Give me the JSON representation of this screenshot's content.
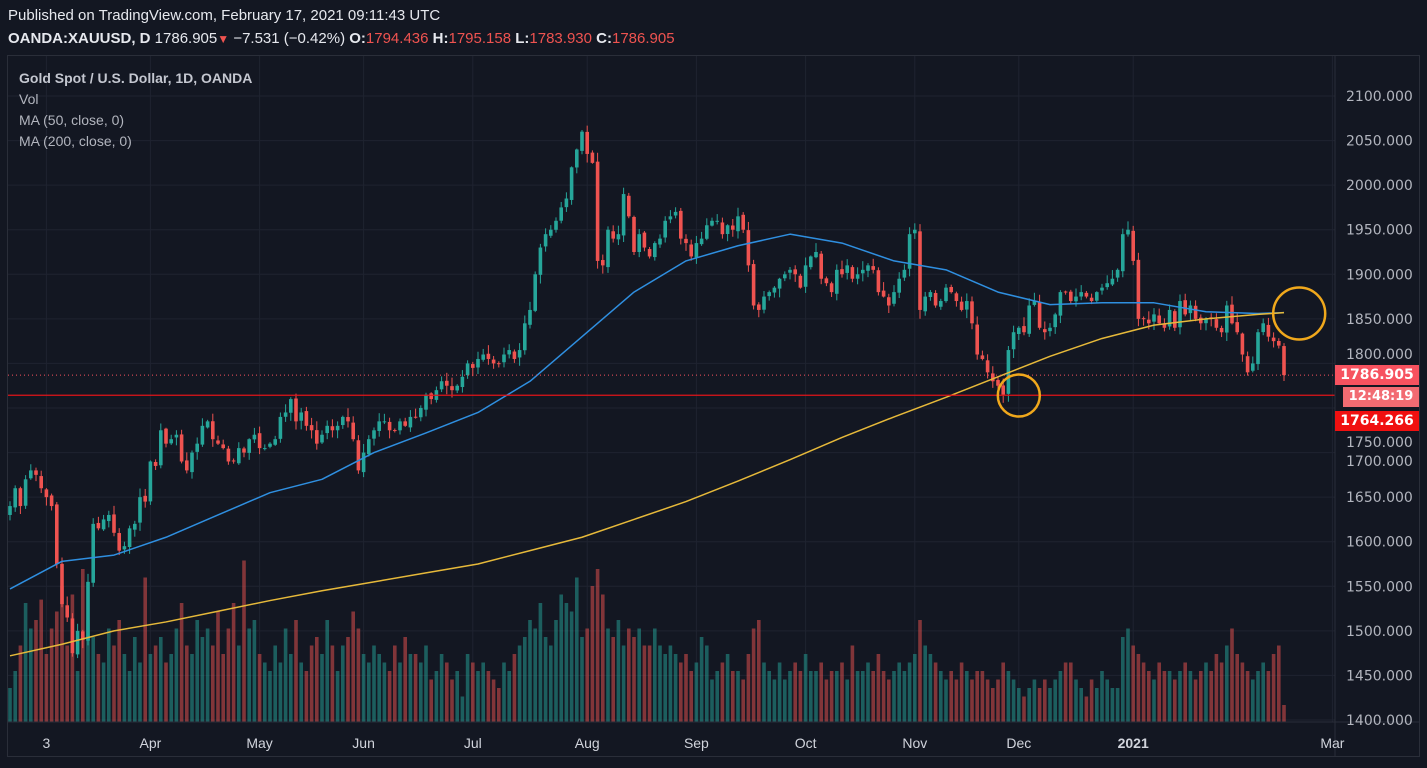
{
  "header": {
    "published": "Published on TradingView.com, February 17, 2021 09:11:43 UTC",
    "symbol": "OANDA:XAUUSD, D",
    "last": "1786.905",
    "change": "−7.531 (−0.42%)",
    "o_label": "O:",
    "o": "1794.436",
    "h_label": "H:",
    "h": "1795.158",
    "l_label": "L:",
    "l": "1783.930",
    "c_label": "C:",
    "c": "1786.905"
  },
  "legend": {
    "title": "Gold Spot / U.S. Dollar, 1D, OANDA",
    "vol": "Vol",
    "ma50": "MA (50, close, 0)",
    "ma200": "MA (200, close, 0)"
  },
  "price_labels": {
    "last": "1786.905",
    "countdown": "12:48:19",
    "hline": "1764.266"
  },
  "colors": {
    "background": "#131722",
    "up": "#26a69a",
    "down": "#ef5350",
    "ma50": "#2f8fe0",
    "ma200": "#e6b93a",
    "hline": "#e0141a",
    "annotation_circle": "#f0a81c"
  },
  "chart_data": {
    "type": "candlestick",
    "title": "Gold Spot / U.S. Dollar, 1D, OANDA",
    "ylim": [
      1400,
      2100
    ],
    "yticks": [
      "2100.000",
      "2050.000",
      "2000.000",
      "1950.000",
      "1900.000",
      "1850.000",
      "1800.000",
      "1750.000",
      "1700.000",
      "1650.000",
      "1600.000",
      "1550.000",
      "1500.000",
      "1450.000",
      "1400.000"
    ],
    "xticks": [
      {
        "label": "3",
        "bar": 7
      },
      {
        "label": "Apr",
        "bar": 27
      },
      {
        "label": "May",
        "bar": 48
      },
      {
        "label": "Jun",
        "bar": 68
      },
      {
        "label": "Jul",
        "bar": 89
      },
      {
        "label": "Aug",
        "bar": 111
      },
      {
        "label": "Sep",
        "bar": 132
      },
      {
        "label": "Oct",
        "bar": 153
      },
      {
        "label": "Nov",
        "bar": 174
      },
      {
        "label": "Dec",
        "bar": 194
      },
      {
        "label": "2021",
        "bar": 216
      },
      {
        "label": "Mar",
        "bar": 252
      }
    ],
    "grid": true,
    "closes": [
      1640,
      1660,
      1640,
      1670,
      1680,
      1675,
      1660,
      1650,
      1640,
      1575,
      1530,
      1515,
      1475,
      1500,
      1490,
      1555,
      1620,
      1615,
      1625,
      1630,
      1610,
      1590,
      1595,
      1615,
      1620,
      1650,
      1645,
      1690,
      1685,
      1725,
      1710,
      1715,
      1720,
      1690,
      1680,
      1700,
      1710,
      1730,
      1735,
      1715,
      1710,
      1705,
      1690,
      1690,
      1705,
      1700,
      1715,
      1720,
      1705,
      1705,
      1710,
      1715,
      1740,
      1745,
      1760,
      1735,
      1745,
      1730,
      1725,
      1710,
      1720,
      1730,
      1725,
      1730,
      1740,
      1735,
      1715,
      1680,
      1700,
      1715,
      1725,
      1735,
      1735,
      1725,
      1725,
      1735,
      1730,
      1740,
      1740,
      1750,
      1765,
      1760,
      1770,
      1780,
      1775,
      1770,
      1775,
      1785,
      1800,
      1795,
      1805,
      1810,
      1805,
      1800,
      1800,
      1810,
      1815,
      1805,
      1815,
      1845,
      1860,
      1900,
      1930,
      1945,
      1950,
      1960,
      1975,
      1985,
      2020,
      2040,
      2060,
      2035,
      2025,
      1915,
      1910,
      1950,
      1940,
      1945,
      1990,
      1965,
      1925,
      1945,
      1930,
      1920,
      1935,
      1940,
      1960,
      1965,
      1970,
      1940,
      1935,
      1920,
      1935,
      1940,
      1955,
      1960,
      1960,
      1945,
      1955,
      1950,
      1965,
      1950,
      1910,
      1865,
      1860,
      1875,
      1880,
      1885,
      1895,
      1900,
      1905,
      1900,
      1885,
      1910,
      1920,
      1925,
      1895,
      1890,
      1880,
      1905,
      1900,
      1910,
      1895,
      1900,
      1905,
      1910,
      1905,
      1880,
      1875,
      1865,
      1880,
      1895,
      1905,
      1945,
      1950,
      1860,
      1875,
      1880,
      1865,
      1870,
      1885,
      1880,
      1870,
      1860,
      1870,
      1845,
      1810,
      1805,
      1790,
      1780,
      1775,
      1765,
      1815,
      1835,
      1840,
      1835,
      1865,
      1870,
      1840,
      1835,
      1840,
      1855,
      1880,
      1880,
      1870,
      1875,
      1880,
      1875,
      1870,
      1880,
      1885,
      1890,
      1895,
      1905,
      1945,
      1950,
      1915,
      1850,
      1850,
      1845,
      1855,
      1845,
      1840,
      1860,
      1840,
      1870,
      1855,
      1865,
      1850,
      1845,
      1850,
      1850,
      1840,
      1835,
      1865,
      1845,
      1835,
      1810,
      1790,
      1800,
      1835,
      1845,
      1830,
      1825,
      1820,
      1786.905
    ],
    "volume_relative": [
      20,
      30,
      45,
      70,
      55,
      60,
      72,
      40,
      55,
      65,
      80,
      45,
      75,
      30,
      90,
      60,
      50,
      40,
      35,
      55,
      45,
      60,
      40,
      30,
      50,
      35,
      85,
      40,
      45,
      50,
      35,
      40,
      55,
      70,
      45,
      40,
      60,
      50,
      55,
      45,
      65,
      40,
      55,
      70,
      45,
      95,
      55,
      60,
      40,
      35,
      30,
      45,
      35,
      55,
      40,
      60,
      35,
      30,
      45,
      50,
      40,
      60,
      45,
      30,
      45,
      50,
      65,
      55,
      40,
      35,
      45,
      40,
      35,
      30,
      45,
      35,
      50,
      40,
      40,
      35,
      45,
      25,
      30,
      40,
      35,
      25,
      30,
      15,
      40,
      35,
      30,
      35,
      30,
      25,
      20,
      35,
      30,
      40,
      45,
      50,
      60,
      55,
      70,
      50,
      45,
      60,
      75,
      70,
      65,
      85,
      50,
      55,
      80,
      90,
      75,
      55,
      50,
      60,
      45,
      55,
      50,
      55,
      45,
      45,
      55,
      45,
      40,
      45,
      40,
      35,
      40,
      30,
      35,
      50,
      45,
      25,
      30,
      35,
      40,
      30,
      30,
      25,
      40,
      55,
      60,
      35,
      30,
      25,
      35,
      25,
      30,
      35,
      30,
      40,
      30,
      30,
      35,
      25,
      30,
      30,
      35,
      25,
      45,
      30,
      30,
      35,
      30,
      40,
      30,
      25,
      30,
      35,
      30,
      35,
      40,
      60,
      45,
      40,
      35,
      30,
      25,
      30,
      25,
      35,
      30,
      25,
      30,
      30,
      25,
      20,
      25,
      35,
      30,
      25,
      20,
      15,
      20,
      25,
      20,
      25,
      20,
      25,
      30,
      35,
      35,
      25,
      20,
      15,
      25,
      20,
      30,
      25,
      20,
      20,
      50,
      55,
      45,
      40,
      35,
      30,
      25,
      35,
      30,
      30,
      25,
      30,
      35,
      30,
      25,
      30,
      35,
      30,
      40,
      35,
      45,
      55,
      40,
      35,
      30,
      25,
      30,
      35,
      30,
      40,
      45,
      10
    ],
    "ma_sample_bars": [
      0,
      10,
      20,
      30,
      40,
      50,
      60,
      70,
      80,
      90,
      100,
      110,
      120,
      130,
      140,
      150,
      160,
      170,
      180,
      190,
      200,
      210,
      220,
      230,
      240,
      245
    ],
    "series": [
      {
        "name": "MA (50, close, 0)",
        "values": [
          1547,
          1578,
          1585,
          1605,
          1630,
          1655,
          1670,
          1700,
          1722,
          1745,
          1780,
          1830,
          1880,
          1915,
          1932,
          1945,
          1935,
          1915,
          1905,
          1880,
          1866,
          1868,
          1868,
          1858,
          1856,
          1857
        ]
      },
      {
        "name": "MA (200, close, 0)",
        "values": [
          1472,
          1485,
          1500,
          1510,
          1522,
          1534,
          1545,
          1555,
          1565,
          1575,
          1590,
          1605,
          1625,
          1645,
          1668,
          1692,
          1717,
          1740,
          1762,
          1785,
          1808,
          1828,
          1843,
          1850,
          1855,
          1857
        ]
      }
    ],
    "horizontal_line": 1764.266,
    "last_price": 1786.905,
    "annotations": [
      {
        "type": "circle",
        "bar": 194,
        "price": 1764
      },
      {
        "type": "circle",
        "bar": 246,
        "price": 1856
      }
    ]
  }
}
